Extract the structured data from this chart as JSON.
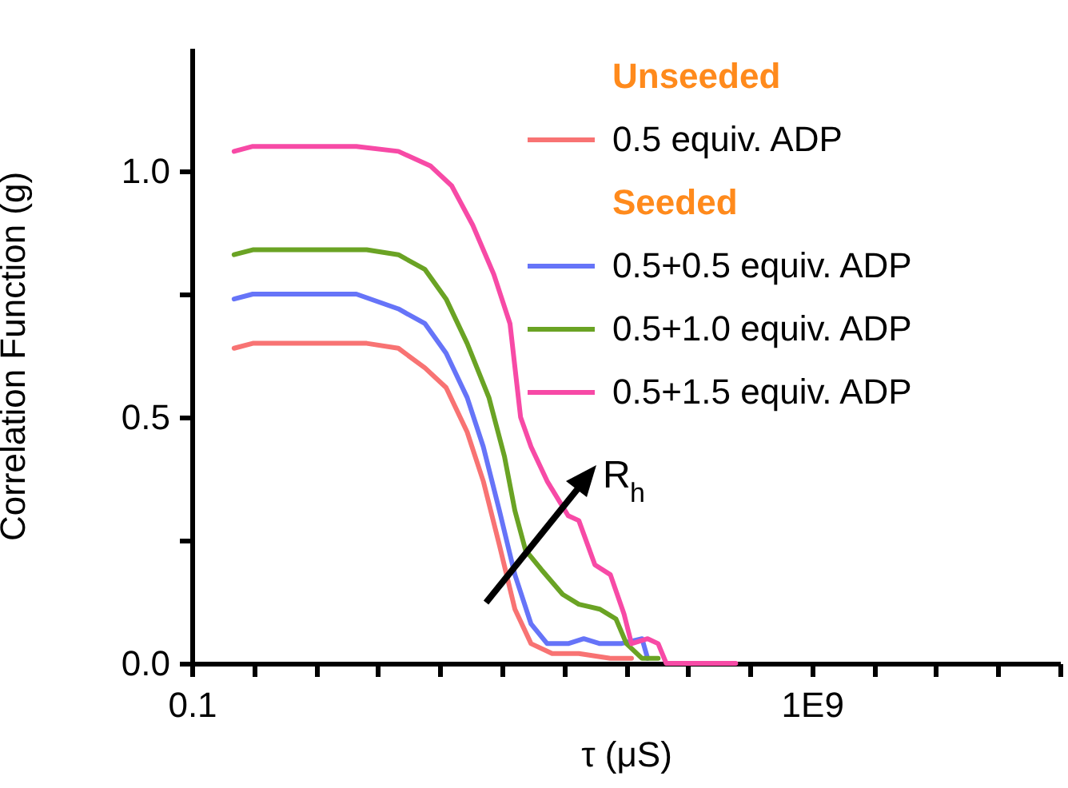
{
  "chart_data": {
    "type": "line",
    "xlabel": "τ (μS)",
    "ylabel": "Correlation Function (g)",
    "legend_title": "Unseeded",
    "annotations": [
      "Seeded",
      "R$_{h}$"
    ],
    "log": "x",
    "grid": false,
    "legend": "top right",
    "line_style": "solid",
    "xlim": [
      0.1,
      10000000000000.0
    ],
    "xticks": [
      {
        "value": 0.1,
        "label": "0.1"
      },
      {
        "value": 1,
        "label": null
      },
      {
        "value": 10,
        "label": null
      },
      {
        "value": 100,
        "label": null
      },
      {
        "value": 1000,
        "label": null
      },
      {
        "value": 10000,
        "label": null
      },
      {
        "value": 100000,
        "label": null
      },
      {
        "value": 1000000,
        "label": null
      },
      {
        "value": 10000000,
        "label": null
      },
      {
        "value": 100000000,
        "label": null
      },
      {
        "value": 1000000000,
        "label": "1E9"
      },
      {
        "value": 10000000000,
        "label": null
      },
      {
        "value": 100000000000,
        "label": null
      },
      {
        "value": 1000000000000,
        "label": null
      },
      {
        "value": 10000000000000,
        "label": null
      }
    ],
    "ylim": [
      0,
      1.25
    ],
    "yticks": [
      {
        "value": 0,
        "label": "0.0"
      },
      {
        "value": 0.25,
        "label": null
      },
      {
        "value": 0.5,
        "label": "0.5"
      },
      {
        "value": 0.75,
        "label": null
      },
      {
        "value": 1,
        "label": "1.0"
      }
    ],
    "series": [
      {
        "name": "0.5 equiv. ADP",
        "color": "#f87373",
        "x": [
          0.48,
          0.96,
          66,
          214,
          575,
          1260,
          2750,
          5010,
          9120,
          16200,
          29500,
          64600,
          174000,
          562000,
          1230000
        ],
        "values": [
          0.64,
          0.65,
          0.65,
          0.64,
          0.6,
          0.56,
          0.47,
          0.37,
          0.24,
          0.11,
          0.04,
          0.02,
          0.02,
          0.01,
          0.01
        ]
      },
      {
        "name": "0.5+0.5 equiv. ADP",
        "color": "#6674f8",
        "x": [
          0.48,
          0.96,
          45,
          214,
          575,
          1260,
          2750,
          5010,
          9120,
          16200,
          29500,
          53700,
          117000,
          209000,
          380000,
          832000,
          1820000,
          2240000
        ],
        "values": [
          0.74,
          0.75,
          0.75,
          0.72,
          0.69,
          0.63,
          0.54,
          0.44,
          0.31,
          0.18,
          0.08,
          0.04,
          0.04,
          0.05,
          0.04,
          0.04,
          0.05,
          0.01
        ]
      },
      {
        "name": "0.5+1.0 equiv. ADP",
        "color": "#6aa324",
        "x": [
          0.48,
          0.96,
          66,
          214,
          575,
          1260,
          2750,
          6170,
          11000,
          16200,
          24000,
          43600,
          95500,
          174000,
          380000,
          692000,
          1020000,
          1820000,
          3310000
        ],
        "values": [
          0.83,
          0.84,
          0.84,
          0.83,
          0.8,
          0.74,
          0.65,
          0.54,
          0.42,
          0.31,
          0.23,
          0.19,
          0.14,
          0.12,
          0.11,
          0.09,
          0.04,
          0.01,
          0.01
        ]
      },
      {
        "name": "0.5+1.5 equiv. ADP",
        "color": "#f74aa6",
        "x": [
          0.48,
          0.96,
          45,
          214,
          710,
          1550,
          3390,
          7410,
          13500,
          20000,
          29500,
          53700,
          117000,
          174000,
          316000,
          562000,
          933000,
          1230000,
          2240000,
          3310000,
          4470000,
          59000000
        ],
        "values": [
          1.04,
          1.05,
          1.05,
          1.04,
          1.01,
          0.97,
          0.89,
          0.79,
          0.69,
          0.5,
          0.44,
          0.37,
          0.3,
          0.29,
          0.2,
          0.18,
          0.1,
          0.04,
          0.05,
          0.04,
          0,
          0
        ]
      }
    ]
  }
}
